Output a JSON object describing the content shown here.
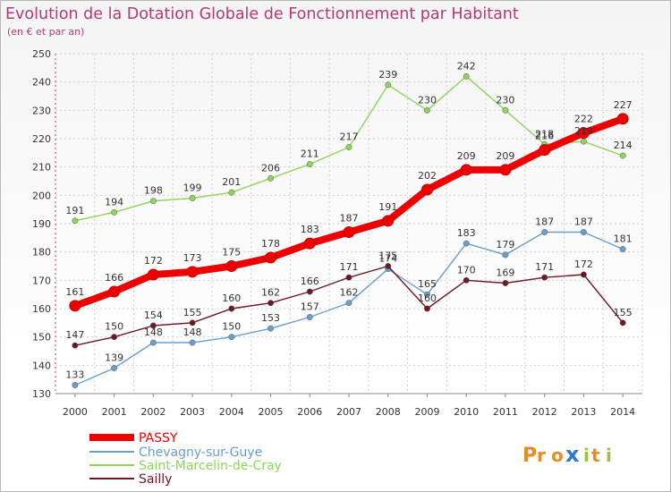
{
  "colors": {
    "title": "#b23a78",
    "grid": "#cfcfcf",
    "axis": "#b23a78"
  },
  "logo": {
    "text": "Proxiti"
  },
  "chart_data": {
    "type": "line",
    "title": "Evolution de la Dotation Globale de Fonctionnement par Habitant",
    "subtitle": "(en € et par an)",
    "xlabel": "",
    "ylabel": "",
    "x": [
      "2000",
      "2001",
      "2002",
      "2003",
      "2004",
      "2005",
      "2006",
      "2007",
      "2008",
      "2009",
      "2010",
      "2011",
      "2012",
      "2013",
      "2014"
    ],
    "ylim": [
      130,
      250
    ],
    "yticks": [
      130,
      140,
      150,
      160,
      170,
      180,
      190,
      200,
      210,
      220,
      230,
      240,
      250
    ],
    "grid": true,
    "legend": "bottom-left",
    "series": [
      {
        "name": "PASSY",
        "color": "#ee0000",
        "values": [
          161,
          166,
          172,
          173,
          175,
          178,
          183,
          187,
          191,
          202,
          209,
          209,
          216,
          222,
          227
        ]
      },
      {
        "name": "Chevagny-sur-Guye",
        "color": "#6a9ecb",
        "values": [
          133,
          139,
          148,
          148,
          150,
          153,
          157,
          162,
          174,
          165,
          183,
          179,
          187,
          187,
          181
        ]
      },
      {
        "name": "Saint-Marcelin-de-Cray",
        "color": "#8fd45b",
        "values": [
          191,
          194,
          198,
          199,
          201,
          206,
          211,
          217,
          239,
          230,
          242,
          230,
          218,
          219,
          214
        ]
      },
      {
        "name": "Sailly",
        "color": "#6b1a24",
        "values": [
          147,
          150,
          154,
          155,
          160,
          162,
          166,
          171,
          175,
          160,
          170,
          169,
          171,
          172,
          155
        ]
      }
    ]
  }
}
